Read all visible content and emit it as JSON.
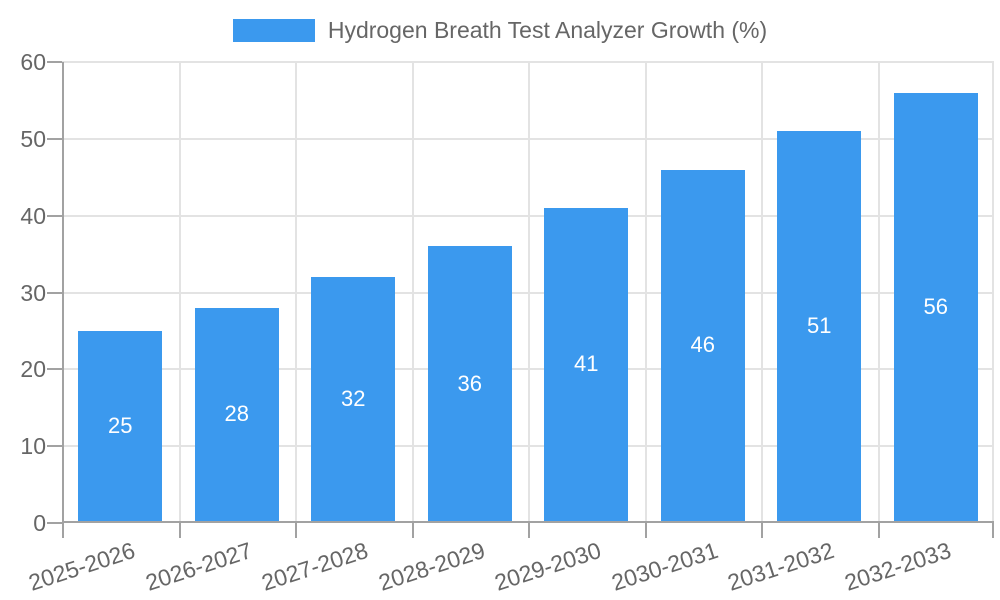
{
  "chart_data": {
    "type": "bar",
    "title": "Hydrogen Breath Test Analyzer Growth (%)",
    "legend": {
      "label": "Hydrogen Breath Test Analyzer Growth (%)",
      "position": "top-center"
    },
    "categories": [
      "2025-2026",
      "2026-2027",
      "2027-2028",
      "2028-2029",
      "2029-2030",
      "2030-2031",
      "2031-2032",
      "2032-2033"
    ],
    "values": [
      25,
      28,
      32,
      36,
      41,
      46,
      51,
      56
    ],
    "xlabel": "",
    "ylabel": "",
    "ylim": [
      0,
      60
    ],
    "yticks": [
      0,
      10,
      20,
      30,
      40,
      50,
      60
    ],
    "grid": "on",
    "x_tick_rotation_deg": -18,
    "value_labels_inside_bars": true,
    "colors": {
      "bar": "#3b99ee",
      "value_label": "#ffffff",
      "tick_label": "#666666",
      "legend_label": "#666666",
      "grid": "#e3e3e3",
      "axis": "#a2a2a2",
      "background": "#ffffff"
    }
  }
}
